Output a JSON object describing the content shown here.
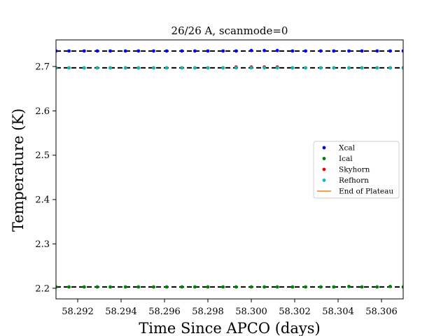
{
  "chart_data": {
    "type": "scatter",
    "title": "26/26 A, scanmode=0",
    "xlabel": "Time Since APCO (days)",
    "ylabel": "Temperature (K)",
    "xlim": [
      58.291,
      58.307
    ],
    "ylim": [
      2.176,
      2.76
    ],
    "xticks": [
      "58.292",
      "58.294",
      "58.296",
      "58.298",
      "58.300",
      "58.302",
      "58.304",
      "58.306"
    ],
    "xtick_values": [
      58.292,
      58.294,
      58.296,
      58.298,
      58.3,
      58.302,
      58.304,
      58.306
    ],
    "yticks": [
      "2.2",
      "2.3",
      "2.4",
      "2.5",
      "2.6",
      "2.7"
    ],
    "ytick_values": [
      2.2,
      2.3,
      2.4,
      2.5,
      2.6,
      2.7
    ],
    "grid": false,
    "legend_position": "right",
    "x": [
      58.291,
      58.2916,
      58.2923,
      58.2929,
      58.2935,
      58.2942,
      58.2948,
      58.2955,
      58.2961,
      58.2968,
      58.2974,
      58.298,
      58.2987,
      58.2993,
      58.3,
      58.3006,
      58.3012,
      58.3019,
      58.3025,
      58.3032,
      58.3038,
      58.3045,
      58.3051,
      58.3058,
      58.3064,
      58.307
    ],
    "series": [
      {
        "name": "Xcal",
        "color": "#0000ff",
        "values": [
          2.735,
          2.735,
          2.735,
          2.735,
          2.735,
          2.735,
          2.735,
          2.735,
          2.735,
          2.735,
          2.735,
          2.735,
          2.735,
          2.735,
          2.736,
          2.736,
          2.736,
          2.735,
          2.735,
          2.735,
          2.735,
          2.735,
          2.735,
          2.735,
          2.735,
          2.735
        ]
      },
      {
        "name": "Ical",
        "color": "#008000",
        "values": [
          2.203,
          2.203,
          2.203,
          2.203,
          2.203,
          2.203,
          2.203,
          2.203,
          2.203,
          2.203,
          2.203,
          2.203,
          2.203,
          2.203,
          2.203,
          2.203,
          2.203,
          2.203,
          2.203,
          2.203,
          2.203,
          2.204,
          2.203,
          2.203,
          2.204,
          2.203
        ]
      },
      {
        "name": "Skyhorn",
        "color": "#ff0000",
        "values": [
          2.697,
          2.697,
          2.697,
          2.697,
          2.697,
          2.697,
          2.697,
          2.697,
          2.697,
          2.697,
          2.697,
          2.697,
          2.697,
          2.699,
          2.699,
          2.699,
          2.699,
          2.697,
          2.697,
          2.697,
          2.697,
          2.697,
          2.697,
          2.697,
          2.697,
          2.697
        ]
      },
      {
        "name": "Refhorn",
        "color": "#00bfbf",
        "values": [
          2.697,
          2.697,
          2.697,
          2.697,
          2.697,
          2.697,
          2.697,
          2.697,
          2.697,
          2.697,
          2.697,
          2.697,
          2.697,
          2.697,
          2.697,
          2.697,
          2.697,
          2.697,
          2.697,
          2.697,
          2.697,
          2.697,
          2.697,
          2.697,
          2.697,
          2.697
        ]
      }
    ],
    "reference_lines": [
      {
        "y": 2.735,
        "color": "#000000",
        "style": "dashed"
      },
      {
        "y": 2.697,
        "color": "#000000",
        "style": "dashed"
      },
      {
        "y": 2.203,
        "color": "#000000",
        "style": "dashed"
      }
    ],
    "legend": [
      {
        "label": "Xcal",
        "color": "#0000ff",
        "kind": "marker"
      },
      {
        "label": "Ical",
        "color": "#008000",
        "kind": "marker"
      },
      {
        "label": "Skyhorn",
        "color": "#ff0000",
        "kind": "marker"
      },
      {
        "label": "Refhorn",
        "color": "#00bfbf",
        "kind": "marker"
      },
      {
        "label": "End of Plateau",
        "color": "#ff7f0e",
        "kind": "line"
      }
    ]
  }
}
